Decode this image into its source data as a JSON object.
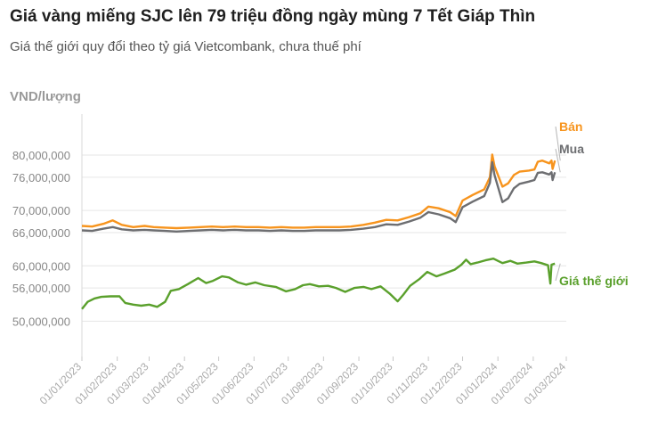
{
  "title": "Giá vàng miếng SJC lên 79 triệu đồng ngày mùng 7 Tết Giáp Thìn",
  "subtitle": "Giá thế giới quy đổi theo tỷ giá Vietcombank, chưa thuế phí",
  "chart_data": {
    "type": "line",
    "ylabel": "VND/lượng",
    "y_ticks": [
      "80,000,000",
      "76,000,000",
      "70,000,000",
      "66,000,000",
      "60,000,000",
      "56,000,000",
      "50,000,000"
    ],
    "y_tick_values": [
      80000000,
      76000000,
      70000000,
      66000000,
      60000000,
      56000000,
      50000000
    ],
    "x_ticks": [
      "01/01/2023",
      "01/02/2023",
      "01/03/2023",
      "01/04/2023",
      "01/05/2023",
      "01/06/2023",
      "01/07/2023",
      "01/08/2023",
      "01/09/2023",
      "01/10/2023",
      "01/11/2023",
      "01/12/2023",
      "01/01/2024",
      "01/02/2024",
      "01/03/2024"
    ],
    "x_tick_dates": [
      "2023-01-01",
      "2023-02-01",
      "2023-03-01",
      "2023-04-01",
      "2023-05-01",
      "2023-06-01",
      "2023-07-01",
      "2023-08-01",
      "2023-09-01",
      "2023-10-01",
      "2023-11-01",
      "2023-12-01",
      "2024-01-01",
      "2024-02-01",
      "2024-03-01"
    ],
    "series": [
      {
        "name": "Bán",
        "color": "#f7941d",
        "points": [
          [
            "2023-01-01",
            67200000
          ],
          [
            "2023-01-10",
            67100000
          ],
          [
            "2023-01-20",
            67600000
          ],
          [
            "2023-01-28",
            68200000
          ],
          [
            "2023-02-05",
            67400000
          ],
          [
            "2023-02-15",
            67000000
          ],
          [
            "2023-02-25",
            67200000
          ],
          [
            "2023-03-05",
            67000000
          ],
          [
            "2023-03-15",
            66900000
          ],
          [
            "2023-03-25",
            66800000
          ],
          [
            "2023-04-05",
            66900000
          ],
          [
            "2023-04-15",
            67000000
          ],
          [
            "2023-04-25",
            67100000
          ],
          [
            "2023-05-05",
            67000000
          ],
          [
            "2023-05-15",
            67100000
          ],
          [
            "2023-05-25",
            67000000
          ],
          [
            "2023-06-05",
            67000000
          ],
          [
            "2023-06-15",
            66900000
          ],
          [
            "2023-06-25",
            67000000
          ],
          [
            "2023-07-05",
            66900000
          ],
          [
            "2023-07-15",
            66900000
          ],
          [
            "2023-07-25",
            67000000
          ],
          [
            "2023-08-05",
            67000000
          ],
          [
            "2023-08-15",
            67000000
          ],
          [
            "2023-08-25",
            67100000
          ],
          [
            "2023-09-05",
            67400000
          ],
          [
            "2023-09-15",
            67800000
          ],
          [
            "2023-09-25",
            68300000
          ],
          [
            "2023-10-05",
            68200000
          ],
          [
            "2023-10-15",
            68800000
          ],
          [
            "2023-10-25",
            69500000
          ],
          [
            "2023-11-01",
            70700000
          ],
          [
            "2023-11-10",
            70400000
          ],
          [
            "2023-11-20",
            69700000
          ],
          [
            "2023-11-25",
            69000000
          ],
          [
            "2023-12-01",
            71800000
          ],
          [
            "2023-12-10",
            72800000
          ],
          [
            "2023-12-20",
            73800000
          ],
          [
            "2023-12-25",
            76000000
          ],
          [
            "2023-12-27",
            80100000
          ],
          [
            "2023-12-29",
            78000000
          ],
          [
            "2024-01-05",
            74300000
          ],
          [
            "2024-01-10",
            74900000
          ],
          [
            "2024-01-15",
            76400000
          ],
          [
            "2024-01-20",
            77000000
          ],
          [
            "2024-01-28",
            77200000
          ],
          [
            "2024-02-02",
            77400000
          ],
          [
            "2024-02-05",
            78800000
          ],
          [
            "2024-02-09",
            79000000
          ],
          [
            "2024-02-15",
            78500000
          ],
          [
            "2024-02-17",
            79000000
          ],
          [
            "2024-02-18",
            77500000
          ],
          [
            "2024-02-20",
            79000000
          ]
        ]
      },
      {
        "name": "Mua",
        "color": "#6d6e71",
        "points": [
          [
            "2023-01-01",
            66400000
          ],
          [
            "2023-01-10",
            66300000
          ],
          [
            "2023-01-20",
            66700000
          ],
          [
            "2023-01-28",
            67000000
          ],
          [
            "2023-02-05",
            66600000
          ],
          [
            "2023-02-15",
            66400000
          ],
          [
            "2023-02-25",
            66500000
          ],
          [
            "2023-03-05",
            66400000
          ],
          [
            "2023-03-15",
            66300000
          ],
          [
            "2023-03-25",
            66200000
          ],
          [
            "2023-04-05",
            66300000
          ],
          [
            "2023-04-15",
            66400000
          ],
          [
            "2023-04-25",
            66500000
          ],
          [
            "2023-05-05",
            66400000
          ],
          [
            "2023-05-15",
            66500000
          ],
          [
            "2023-05-25",
            66400000
          ],
          [
            "2023-06-05",
            66400000
          ],
          [
            "2023-06-15",
            66300000
          ],
          [
            "2023-06-25",
            66400000
          ],
          [
            "2023-07-05",
            66300000
          ],
          [
            "2023-07-15",
            66300000
          ],
          [
            "2023-07-25",
            66400000
          ],
          [
            "2023-08-05",
            66400000
          ],
          [
            "2023-08-15",
            66400000
          ],
          [
            "2023-08-25",
            66500000
          ],
          [
            "2023-09-05",
            66700000
          ],
          [
            "2023-09-15",
            67000000
          ],
          [
            "2023-09-25",
            67500000
          ],
          [
            "2023-10-05",
            67400000
          ],
          [
            "2023-10-15",
            68000000
          ],
          [
            "2023-10-25",
            68700000
          ],
          [
            "2023-11-01",
            69700000
          ],
          [
            "2023-11-10",
            69300000
          ],
          [
            "2023-11-20",
            68600000
          ],
          [
            "2023-11-25",
            67900000
          ],
          [
            "2023-12-01",
            70600000
          ],
          [
            "2023-12-10",
            71600000
          ],
          [
            "2023-12-20",
            72600000
          ],
          [
            "2023-12-25",
            75000000
          ],
          [
            "2023-12-27",
            78700000
          ],
          [
            "2023-12-29",
            76400000
          ],
          [
            "2024-01-05",
            71500000
          ],
          [
            "2024-01-10",
            72200000
          ],
          [
            "2024-01-15",
            74000000
          ],
          [
            "2024-01-20",
            74800000
          ],
          [
            "2024-01-28",
            75200000
          ],
          [
            "2024-02-02",
            75500000
          ],
          [
            "2024-02-05",
            76800000
          ],
          [
            "2024-02-09",
            76900000
          ],
          [
            "2024-02-15",
            76500000
          ],
          [
            "2024-02-17",
            76900000
          ],
          [
            "2024-02-18",
            75500000
          ],
          [
            "2024-02-20",
            76900000
          ]
        ]
      },
      {
        "name": "Giá thế giới",
        "color": "#5aa02c",
        "points": [
          [
            "2023-01-01",
            52200000
          ],
          [
            "2023-01-06",
            53500000
          ],
          [
            "2023-01-12",
            54100000
          ],
          [
            "2023-01-18",
            54400000
          ],
          [
            "2023-01-26",
            54500000
          ],
          [
            "2023-02-03",
            54500000
          ],
          [
            "2023-02-08",
            53300000
          ],
          [
            "2023-02-15",
            53000000
          ],
          [
            "2023-02-22",
            52800000
          ],
          [
            "2023-03-01",
            53000000
          ],
          [
            "2023-03-08",
            52600000
          ],
          [
            "2023-03-15",
            53500000
          ],
          [
            "2023-03-20",
            55500000
          ],
          [
            "2023-03-27",
            55800000
          ],
          [
            "2023-04-04",
            56700000
          ],
          [
            "2023-04-13",
            57800000
          ],
          [
            "2023-04-20",
            56900000
          ],
          [
            "2023-04-26",
            57300000
          ],
          [
            "2023-05-04",
            58100000
          ],
          [
            "2023-05-10",
            57900000
          ],
          [
            "2023-05-18",
            57000000
          ],
          [
            "2023-05-25",
            56600000
          ],
          [
            "2023-06-02",
            57000000
          ],
          [
            "2023-06-10",
            56500000
          ],
          [
            "2023-06-20",
            56200000
          ],
          [
            "2023-06-29",
            55400000
          ],
          [
            "2023-07-07",
            55800000
          ],
          [
            "2023-07-14",
            56500000
          ],
          [
            "2023-07-20",
            56700000
          ],
          [
            "2023-07-28",
            56300000
          ],
          [
            "2023-08-05",
            56400000
          ],
          [
            "2023-08-12",
            56000000
          ],
          [
            "2023-08-20",
            55300000
          ],
          [
            "2023-08-28",
            56000000
          ],
          [
            "2023-09-05",
            56200000
          ],
          [
            "2023-09-12",
            55800000
          ],
          [
            "2023-09-20",
            56300000
          ],
          [
            "2023-09-28",
            55000000
          ],
          [
            "2023-10-05",
            53600000
          ],
          [
            "2023-10-10",
            54800000
          ],
          [
            "2023-10-16",
            56400000
          ],
          [
            "2023-10-24",
            57600000
          ],
          [
            "2023-10-31",
            58900000
          ],
          [
            "2023-11-08",
            58100000
          ],
          [
            "2023-11-15",
            58600000
          ],
          [
            "2023-11-24",
            59300000
          ],
          [
            "2023-11-30",
            60200000
          ],
          [
            "2023-12-04",
            61100000
          ],
          [
            "2023-12-08",
            60300000
          ],
          [
            "2023-12-14",
            60600000
          ],
          [
            "2023-12-21",
            61000000
          ],
          [
            "2023-12-28",
            61300000
          ],
          [
            "2024-01-05",
            60500000
          ],
          [
            "2024-01-12",
            60900000
          ],
          [
            "2024-01-18",
            60400000
          ],
          [
            "2024-01-26",
            60600000
          ],
          [
            "2024-02-02",
            60800000
          ],
          [
            "2024-02-08",
            60500000
          ],
          [
            "2024-02-14",
            60100000
          ],
          [
            "2024-02-16",
            56800000
          ],
          [
            "2024-02-17",
            60200000
          ],
          [
            "2024-02-20",
            60400000
          ]
        ]
      }
    ],
    "grid": "horizontal",
    "legend": "end-of-line labels"
  }
}
